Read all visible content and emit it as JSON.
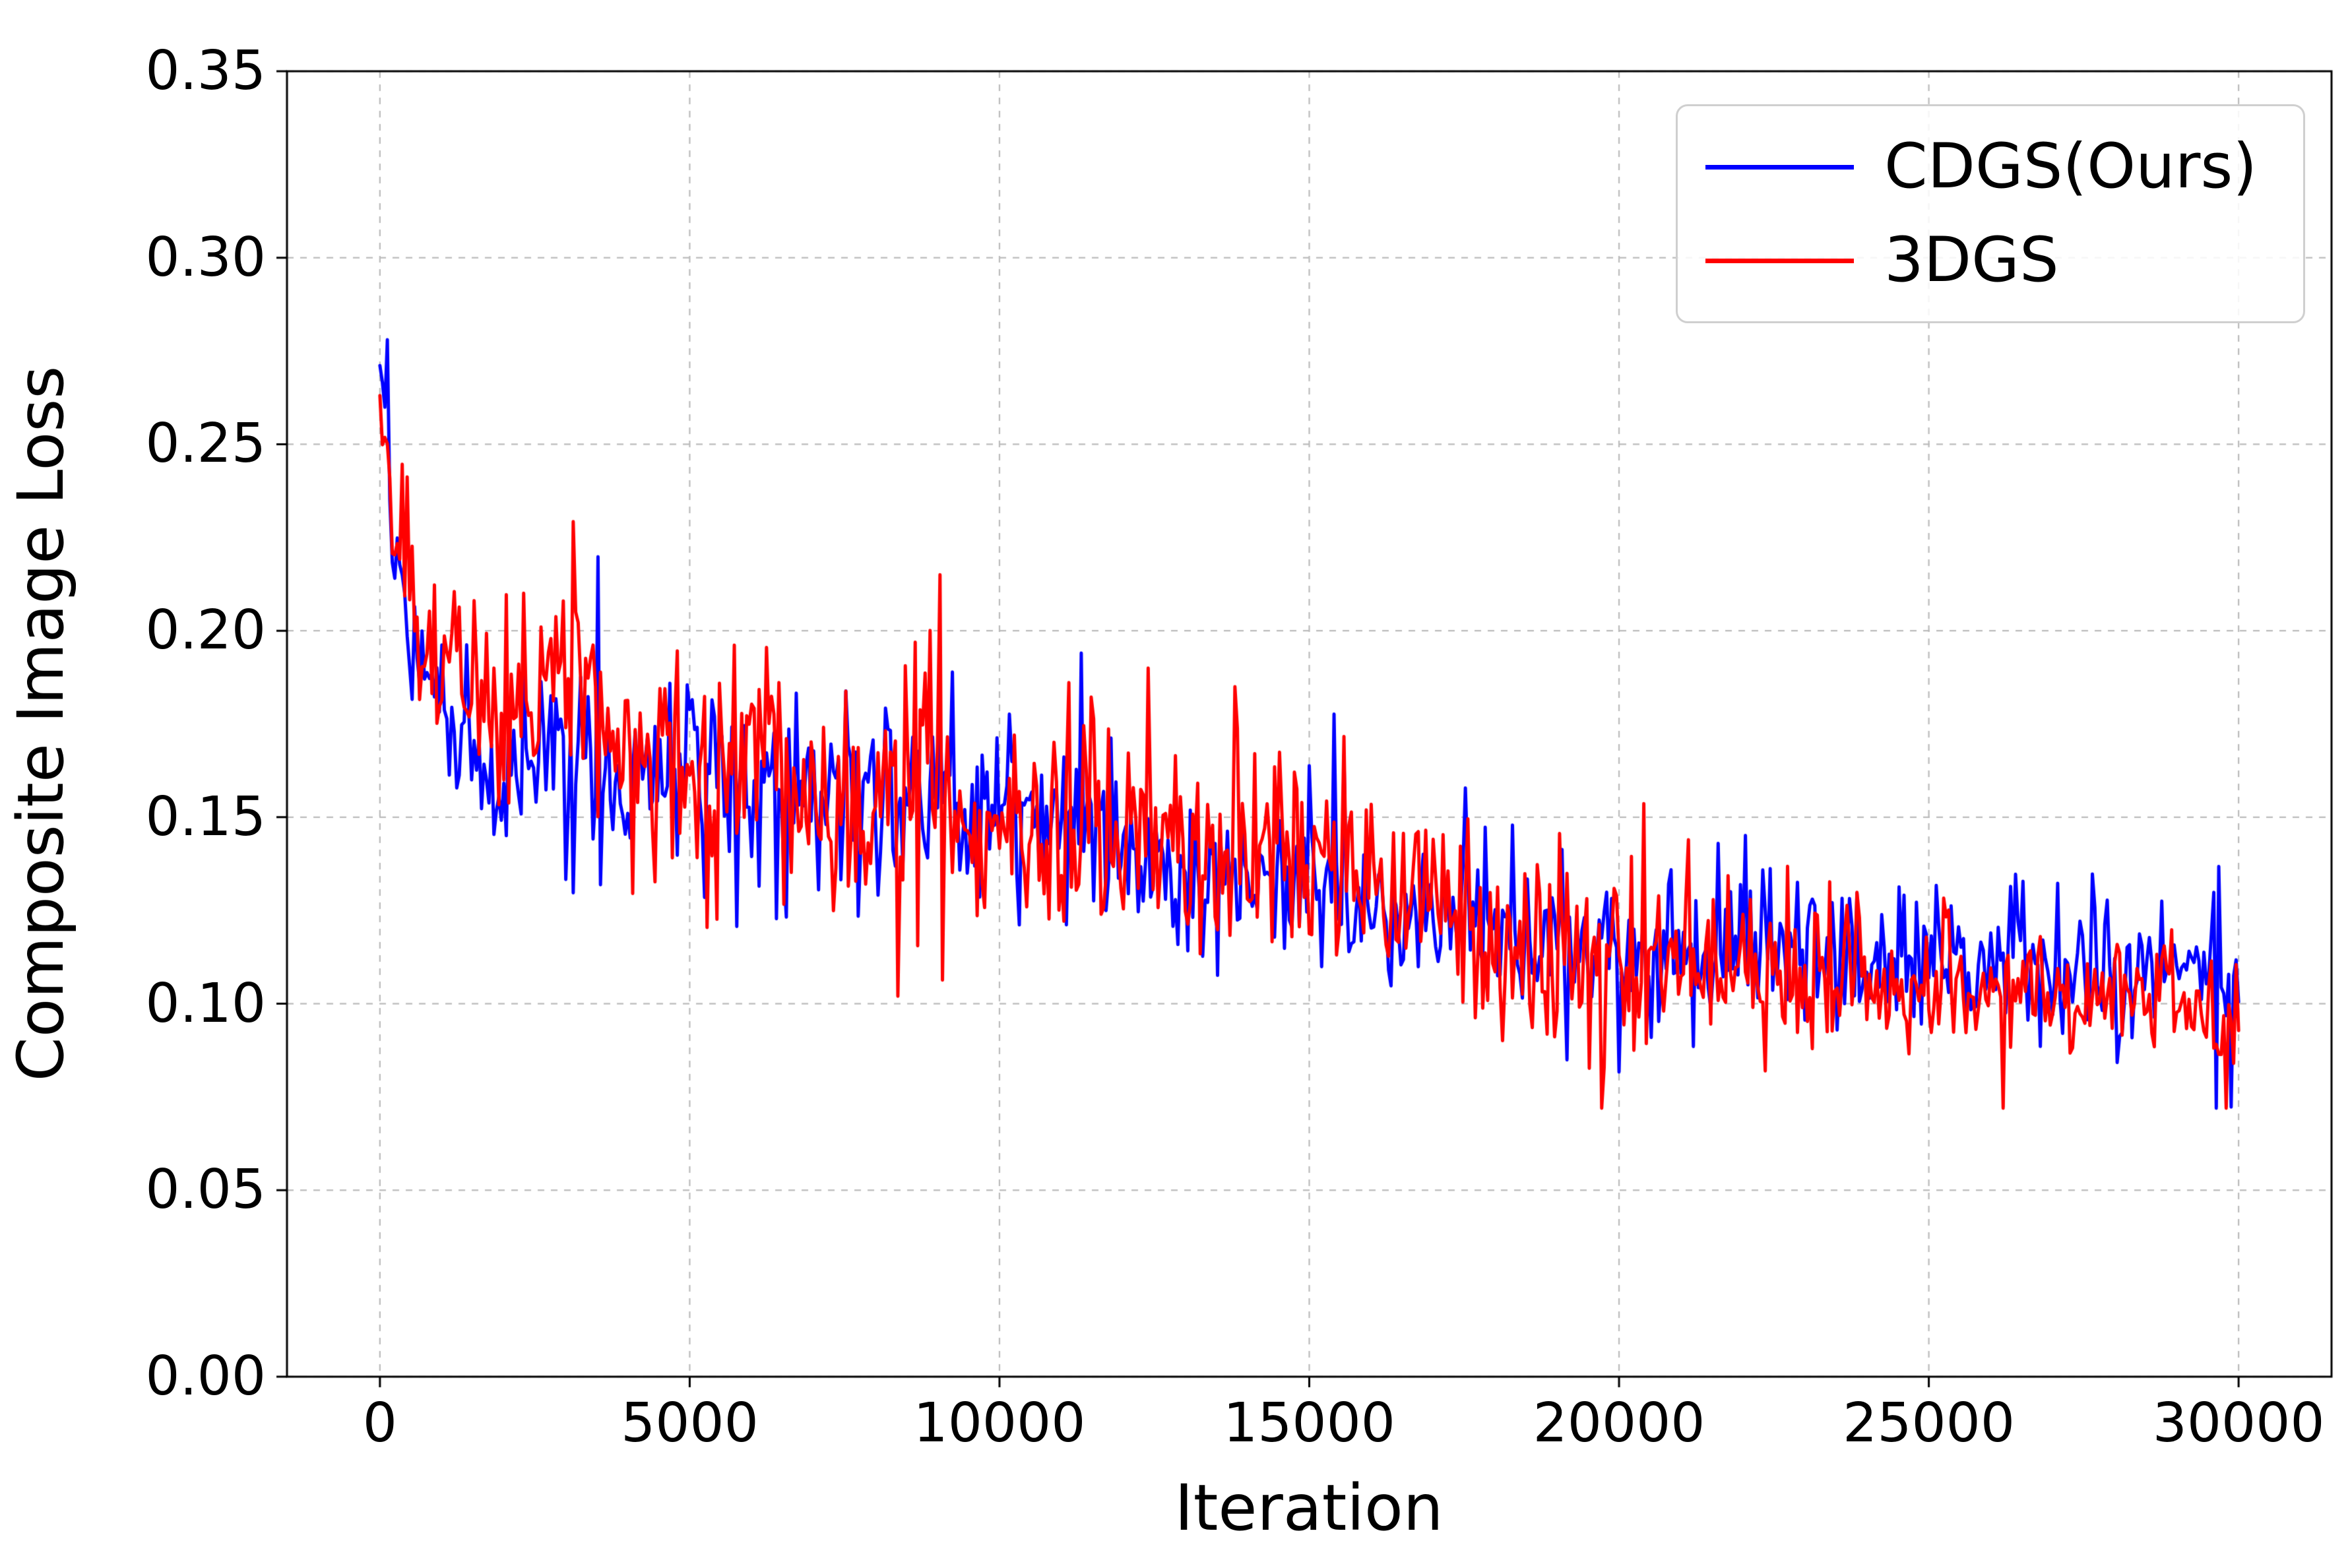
{
  "figure": {
    "background": "#ffffff"
  },
  "chart_data": {
    "type": "line",
    "title": "",
    "xlabel": "Iteration",
    "ylabel": "Composite Image Loss",
    "xlim": [
      -1500,
      31500
    ],
    "ylim": [
      0.0,
      0.35
    ],
    "xticks": [
      0,
      5000,
      10000,
      15000,
      20000,
      25000,
      30000
    ],
    "xtick_labels": [
      "0",
      "5000",
      "10000",
      "15000",
      "20000",
      "25000",
      "30000"
    ],
    "yticks": [
      0.0,
      0.05,
      0.1,
      0.15,
      0.2,
      0.25,
      0.3,
      0.35
    ],
    "ytick_labels": [
      "0.00",
      "0.05",
      "0.10",
      "0.15",
      "0.20",
      "0.25",
      "0.30",
      "0.35"
    ],
    "grid": true,
    "grid_style": "dashed",
    "grid_color": "#bababa",
    "axis_color": "#000000",
    "legend": {
      "position": "upper-right",
      "entries": [
        "CDGS(Ours)",
        "3DGS"
      ]
    },
    "sample_interval": 40,
    "series": [
      {
        "name": "CDGS(Ours)",
        "color": "#0000ff",
        "trend_x": [
          0,
          100,
          250,
          500,
          750,
          1000,
          1500,
          2000,
          2500,
          3000,
          3500,
          4000,
          4500,
          5000,
          5500,
          6000,
          6500,
          7000,
          7500,
          8000,
          8500,
          9000,
          9500,
          10000,
          10500,
          11000,
          11500,
          12000,
          12500,
          13000,
          13500,
          14000,
          14500,
          15000,
          16000,
          17000,
          18000,
          19000,
          20000,
          21000,
          22000,
          23000,
          24000,
          25000,
          26000,
          27000,
          28000,
          29000,
          30000
        ],
        "trend_y": [
          0.27,
          0.252,
          0.213,
          0.2,
          0.188,
          0.182,
          0.172,
          0.166,
          0.163,
          0.168,
          0.166,
          0.16,
          0.163,
          0.167,
          0.16,
          0.156,
          0.16,
          0.155,
          0.153,
          0.152,
          0.15,
          0.152,
          0.148,
          0.15,
          0.153,
          0.15,
          0.148,
          0.143,
          0.14,
          0.136,
          0.134,
          0.132,
          0.131,
          0.13,
          0.126,
          0.122,
          0.12,
          0.118,
          0.116,
          0.116,
          0.115,
          0.112,
          0.111,
          0.112,
          0.11,
          0.11,
          0.108,
          0.11,
          0.104
        ],
        "noise_x": [
          0,
          300,
          1000,
          3000,
          8000,
          15000,
          22000,
          30000
        ],
        "noise_std": [
          0.003,
          0.008,
          0.011,
          0.013,
          0.013,
          0.011,
          0.01,
          0.008
        ],
        "spikes": [
          {
            "x": 120,
            "y": 0.278
          },
          {
            "x": 11320,
            "y": 0.194
          },
          {
            "x": 21600,
            "y": 0.143
          }
        ]
      },
      {
        "name": "3DGS",
        "color": "#ff0000",
        "trend_x": [
          0,
          100,
          250,
          500,
          750,
          1000,
          1500,
          2000,
          2500,
          3000,
          3500,
          4000,
          4500,
          5000,
          5500,
          6000,
          6500,
          7000,
          7500,
          8000,
          8500,
          9000,
          9500,
          10000,
          10500,
          11000,
          11500,
          12000,
          12500,
          13000,
          13500,
          14000,
          14500,
          15000,
          16000,
          17000,
          18000,
          19000,
          20000,
          21000,
          22000,
          23000,
          24000,
          25000,
          26000,
          27000,
          28000,
          29000,
          30000
        ],
        "trend_y": [
          0.263,
          0.248,
          0.218,
          0.21,
          0.198,
          0.192,
          0.186,
          0.18,
          0.182,
          0.188,
          0.18,
          0.172,
          0.168,
          0.165,
          0.166,
          0.168,
          0.163,
          0.16,
          0.156,
          0.152,
          0.154,
          0.157,
          0.152,
          0.15,
          0.148,
          0.147,
          0.149,
          0.15,
          0.147,
          0.144,
          0.141,
          0.139,
          0.138,
          0.137,
          0.131,
          0.124,
          0.118,
          0.114,
          0.112,
          0.11,
          0.109,
          0.108,
          0.106,
          0.105,
          0.104,
          0.101,
          0.1,
          0.1,
          0.096
        ],
        "noise_x": [
          0,
          300,
          1000,
          3000,
          8000,
          15000,
          22000,
          30000
        ],
        "noise_std": [
          0.003,
          0.009,
          0.012,
          0.015,
          0.015,
          0.013,
          0.01,
          0.008
        ],
        "spikes": [
          {
            "x": 2960,
            "y": 0.208
          },
          {
            "x": 3160,
            "y": 0.205
          },
          {
            "x": 9040,
            "y": 0.215
          },
          {
            "x": 12400,
            "y": 0.19
          },
          {
            "x": 29920,
            "y": 0.084
          }
        ]
      }
    ]
  }
}
